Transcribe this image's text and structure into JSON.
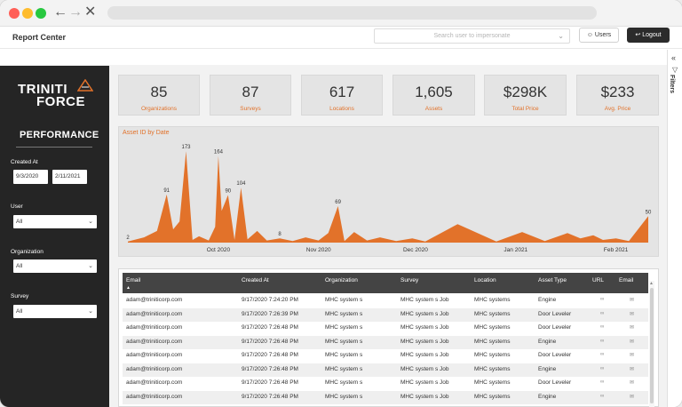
{
  "header": {
    "title": "Report Center",
    "impersonate_placeholder": "Search user to impersonate",
    "users_label": "Users",
    "logout_label": "Logout"
  },
  "filters_pane": {
    "label": "Filters"
  },
  "sidebar": {
    "logo_top": "TRINITI",
    "logo_bottom": "FORCE",
    "section_title": "PERFORMANCE",
    "created_at_label": "Created At",
    "date_from": "9/3/2020",
    "date_to": "2/11/2021",
    "user_label": "User",
    "user_value": "All",
    "organization_label": "Organization",
    "organization_value": "All",
    "survey_label": "Survey",
    "survey_value": "All"
  },
  "kpis": [
    {
      "value": "85",
      "label": "Organizations"
    },
    {
      "value": "87",
      "label": "Surveys"
    },
    {
      "value": "617",
      "label": "Locations"
    },
    {
      "value": "1,605",
      "label": "Assets"
    },
    {
      "value": "$298K",
      "label": "Total Price"
    },
    {
      "value": "$233",
      "label": "Avg. Price"
    }
  ],
  "chart_data": {
    "type": "area",
    "title": "Asset ID by Date",
    "color": "#e2722a",
    "x_ticks": [
      "Oct 2020",
      "Nov 2020",
      "Dec 2020",
      "Jan 2021",
      "Feb 2021"
    ],
    "labeled_points": [
      {
        "x": "2020-09-03",
        "y": 2,
        "label": "2"
      },
      {
        "x": "2020-09-15",
        "y": 91,
        "label": "91"
      },
      {
        "x": "2020-09-21",
        "y": 173,
        "label": "173"
      },
      {
        "x": "2020-10-01",
        "y": 164,
        "label": "164"
      },
      {
        "x": "2020-10-04",
        "y": 90,
        "label": "90"
      },
      {
        "x": "2020-10-08",
        "y": 104,
        "label": "104"
      },
      {
        "x": "2020-10-20",
        "y": 8,
        "label": "8"
      },
      {
        "x": "2020-11-07",
        "y": 69,
        "label": "69"
      },
      {
        "x": "2021-02-11",
        "y": 50,
        "label": "50"
      }
    ],
    "points": [
      [
        "2020-09-03",
        2
      ],
      [
        "2020-09-08",
        10
      ],
      [
        "2020-09-12",
        22
      ],
      [
        "2020-09-15",
        91
      ],
      [
        "2020-09-17",
        25
      ],
      [
        "2020-09-19",
        40
      ],
      [
        "2020-09-21",
        173
      ],
      [
        "2020-09-23",
        5
      ],
      [
        "2020-09-25",
        12
      ],
      [
        "2020-09-28",
        4
      ],
      [
        "2020-09-30",
        30
      ],
      [
        "2020-10-01",
        164
      ],
      [
        "2020-10-02",
        60
      ],
      [
        "2020-10-04",
        90
      ],
      [
        "2020-10-06",
        5
      ],
      [
        "2020-10-08",
        104
      ],
      [
        "2020-10-10",
        6
      ],
      [
        "2020-10-13",
        22
      ],
      [
        "2020-10-16",
        4
      ],
      [
        "2020-10-20",
        8
      ],
      [
        "2020-10-24",
        3
      ],
      [
        "2020-10-28",
        10
      ],
      [
        "2020-11-01",
        4
      ],
      [
        "2020-11-04",
        18
      ],
      [
        "2020-11-07",
        69
      ],
      [
        "2020-11-09",
        3
      ],
      [
        "2020-11-12",
        20
      ],
      [
        "2020-11-16",
        4
      ],
      [
        "2020-11-20",
        10
      ],
      [
        "2020-11-25",
        3
      ],
      [
        "2020-11-30",
        8
      ],
      [
        "2020-12-04",
        2
      ],
      [
        "2020-12-14",
        35
      ],
      [
        "2020-12-26",
        2
      ],
      [
        "2021-01-03",
        20
      ],
      [
        "2021-01-10",
        3
      ],
      [
        "2021-01-17",
        18
      ],
      [
        "2021-01-21",
        8
      ],
      [
        "2021-01-25",
        14
      ],
      [
        "2021-01-28",
        5
      ],
      [
        "2021-02-01",
        8
      ],
      [
        "2021-02-05",
        3
      ],
      [
        "2021-02-11",
        50
      ]
    ],
    "ylim": [
      0,
      185
    ],
    "xlim": [
      "2020-09-03",
      "2021-02-11"
    ],
    "grid": false
  },
  "table": {
    "columns": [
      "Email",
      "Created At",
      "Organization",
      "Survey",
      "Location",
      "Asset Type",
      "URL",
      "Email"
    ],
    "rows": [
      [
        "adam@triniticorp.com",
        "9/17/2020 7:24:20 PM",
        "MHC system s",
        "MHC system s Job",
        "MHC systems",
        "Engine"
      ],
      [
        "adam@triniticorp.com",
        "9/17/2020 7:26:39 PM",
        "MHC system s",
        "MHC system s Job",
        "MHC systems",
        "Door Leveler"
      ],
      [
        "adam@triniticorp.com",
        "9/17/2020 7:26:48 PM",
        "MHC system s",
        "MHC system s Job",
        "MHC systems",
        "Door Leveler"
      ],
      [
        "adam@triniticorp.com",
        "9/17/2020 7:26:48 PM",
        "MHC system s",
        "MHC system s Job",
        "MHC systems",
        "Engine"
      ],
      [
        "adam@triniticorp.com",
        "9/17/2020 7:26:48 PM",
        "MHC system s",
        "MHC system s Job",
        "MHC systems",
        "Door Leveler"
      ],
      [
        "adam@triniticorp.com",
        "9/17/2020 7:26:48 PM",
        "MHC system s",
        "MHC system s Job",
        "MHC systems",
        "Engine"
      ],
      [
        "adam@triniticorp.com",
        "9/17/2020 7:26:48 PM",
        "MHC system s",
        "MHC system s Job",
        "MHC systems",
        "Door Leveler"
      ],
      [
        "adam@triniticorp.com",
        "9/17/2020 7:26:48 PM",
        "MHC system s",
        "MHC system s Job",
        "MHC systems",
        "Engine"
      ]
    ]
  },
  "icons": {
    "url_icon": "link-icon",
    "email_icon": "mail-icon"
  }
}
